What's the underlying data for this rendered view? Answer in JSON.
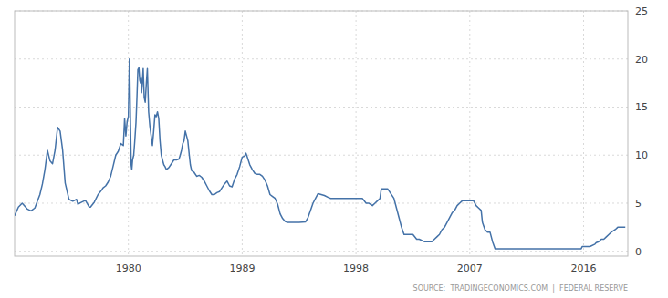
{
  "chart_data": {
    "type": "line",
    "annotations": [
      "SOURCE:  TRADINGECONOMICS.COM  |  FEDERAL RESERVE"
    ],
    "color": "#4472a8",
    "grid": true,
    "xlim": [
      1971.0,
      2019.5
    ],
    "xticks": [
      1980,
      1989,
      1998,
      2007,
      2016
    ],
    "ylim": [
      -0.5,
      25
    ],
    "yticks": [
      0,
      5,
      10,
      15,
      20,
      25
    ],
    "x": [
      1971.0,
      1971.3,
      1971.6,
      1972.0,
      1972.3,
      1972.6,
      1973.0,
      1973.2,
      1973.4,
      1973.6,
      1973.8,
      1974.0,
      1974.2,
      1974.4,
      1974.6,
      1974.8,
      1975.0,
      1975.3,
      1975.6,
      1975.9,
      1976.0,
      1976.3,
      1976.6,
      1976.9,
      1977.0,
      1977.3,
      1977.6,
      1977.9,
      1978.0,
      1978.2,
      1978.4,
      1978.6,
      1978.8,
      1979.0,
      1979.2,
      1979.4,
      1979.6,
      1979.7,
      1979.8,
      1979.9,
      1980.0,
      1980.04,
      1980.08,
      1980.12,
      1980.17,
      1980.22,
      1980.27,
      1980.33,
      1980.42,
      1980.5,
      1980.6,
      1980.67,
      1980.75,
      1980.83,
      1980.9,
      1980.96,
      1981.0,
      1981.04,
      1981.1,
      1981.17,
      1981.25,
      1981.33,
      1981.42,
      1981.5,
      1981.6,
      1981.7,
      1981.8,
      1981.9,
      1982.0,
      1982.1,
      1982.2,
      1982.3,
      1982.4,
      1982.5,
      1982.6,
      1982.7,
      1982.8,
      1982.9,
      1983.0,
      1983.2,
      1983.4,
      1983.6,
      1983.8,
      1984.0,
      1984.1,
      1984.2,
      1984.3,
      1984.4,
      1984.5,
      1984.6,
      1984.7,
      1984.8,
      1984.9,
      1985.0,
      1985.2,
      1985.4,
      1985.6,
      1985.8,
      1986.0,
      1986.2,
      1986.4,
      1986.6,
      1986.8,
      1987.0,
      1987.2,
      1987.4,
      1987.6,
      1987.8,
      1988.0,
      1988.2,
      1988.4,
      1988.6,
      1988.8,
      1989.0,
      1989.2,
      1989.3,
      1989.4,
      1989.6,
      1989.8,
      1990.0,
      1990.2,
      1990.4,
      1990.6,
      1990.8,
      1991.0,
      1991.2,
      1991.4,
      1991.6,
      1991.8,
      1992.0,
      1992.2,
      1992.4,
      1992.6,
      1992.8,
      1993.0,
      1993.5,
      1994.0,
      1994.2,
      1994.4,
      1994.6,
      1994.8,
      1995.0,
      1995.5,
      1995.8,
      1996.0,
      1996.5,
      1997.0,
      1997.5,
      1998.0,
      1998.5,
      1998.8,
      1999.0,
      1999.3,
      1999.5,
      1999.7,
      1999.9,
      2000.0,
      2000.5,
      2001.0,
      2001.2,
      2001.4,
      2001.6,
      2001.8,
      2002.0,
      2002.5,
      2002.8,
      2003.0,
      2003.4,
      2004.0,
      2004.2,
      2004.4,
      2004.6,
      2004.8,
      2005.0,
      2005.2,
      2005.4,
      2005.6,
      2005.8,
      2006.0,
      2006.2,
      2006.4,
      2006.6,
      2006.8,
      2007.0,
      2007.3,
      2007.5,
      2007.7,
      2007.9,
      2008.0,
      2008.2,
      2008.4,
      2008.6,
      2008.8,
      2009.0,
      2009.5,
      2010.0,
      2010.5,
      2011.0,
      2011.5,
      2012.0,
      2012.5,
      2013.0,
      2013.5,
      2014.0,
      2014.5,
      2015.0,
      2015.5,
      2015.8,
      2015.9,
      2016.0,
      2016.5,
      2016.9,
      2017.0,
      2017.2,
      2017.4,
      2017.6,
      2017.8,
      2018.0,
      2018.2,
      2018.5,
      2018.7,
      2019.0,
      2019.3
    ],
    "values": [
      3.7,
      4.6,
      5.0,
      4.4,
      4.2,
      4.5,
      5.9,
      7.0,
      8.5,
      10.5,
      9.4,
      9.1,
      10.5,
      12.9,
      12.5,
      10.5,
      7.1,
      5.4,
      5.2,
      5.4,
      4.9,
      5.1,
      5.3,
      4.6,
      4.6,
      5.1,
      5.9,
      6.4,
      6.6,
      6.8,
      7.2,
      7.8,
      8.9,
      10.0,
      10.4,
      11.2,
      11.0,
      13.8,
      12.0,
      13.5,
      14.0,
      17.0,
      20.0,
      17.6,
      13.0,
      9.0,
      8.5,
      9.5,
      10.0,
      11.4,
      13.4,
      15.8,
      18.9,
      19.1,
      17.8,
      17.5,
      18.0,
      16.5,
      17.5,
      19.0,
      16.0,
      15.5,
      17.5,
      19.0,
      14.5,
      13.0,
      12.0,
      11.0,
      12.5,
      14.2,
      14.0,
      14.5,
      13.8,
      11.5,
      10.0,
      9.5,
      9.0,
      8.8,
      8.5,
      8.7,
      9.1,
      9.5,
      9.5,
      9.6,
      10.0,
      10.5,
      11.2,
      11.5,
      12.5,
      12.0,
      11.5,
      10.2,
      9.0,
      8.4,
      8.2,
      7.8,
      7.9,
      7.7,
      7.3,
      6.8,
      6.3,
      5.9,
      5.9,
      6.1,
      6.2,
      6.6,
      7.0,
      7.3,
      6.8,
      6.7,
      7.5,
      8.0,
      8.8,
      9.8,
      9.9,
      10.2,
      9.8,
      9.0,
      8.5,
      8.1,
      8.0,
      8.0,
      7.8,
      7.4,
      6.8,
      5.9,
      5.7,
      5.5,
      4.9,
      3.9,
      3.4,
      3.1,
      3.0,
      3.0,
      3.0,
      3.0,
      3.05,
      3.5,
      4.25,
      5.0,
      5.5,
      6.0,
      5.8,
      5.6,
      5.5,
      5.5,
      5.5,
      5.5,
      5.5,
      5.5,
      5.0,
      5.0,
      4.75,
      5.0,
      5.25,
      5.5,
      6.5,
      6.5,
      5.5,
      4.5,
      3.5,
      2.5,
      1.75,
      1.75,
      1.75,
      1.25,
      1.25,
      1.0,
      1.0,
      1.25,
      1.5,
      1.75,
      2.25,
      2.5,
      3.0,
      3.5,
      4.0,
      4.25,
      4.75,
      5.0,
      5.25,
      5.25,
      5.25,
      5.25,
      5.25,
      4.75,
      4.5,
      4.25,
      3.0,
      2.25,
      2.0,
      2.0,
      1.0,
      0.25,
      0.25,
      0.25,
      0.25,
      0.25,
      0.25,
      0.25,
      0.25,
      0.25,
      0.25,
      0.25,
      0.25,
      0.25,
      0.25,
      0.25,
      0.5,
      0.5,
      0.5,
      0.75,
      0.9,
      1.0,
      1.25,
      1.25,
      1.5,
      1.75,
      2.0,
      2.25,
      2.5,
      2.5,
      2.5
    ]
  }
}
